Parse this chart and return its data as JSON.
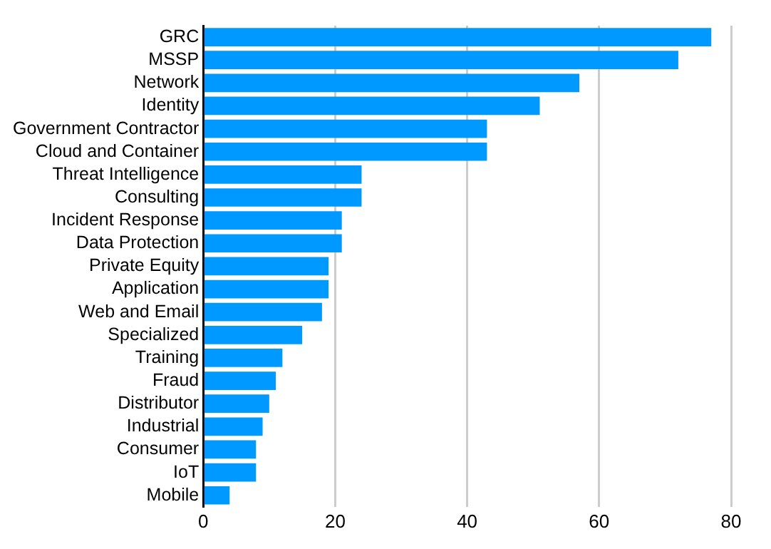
{
  "chart_data": {
    "type": "bar",
    "orientation": "horizontal",
    "categories": [
      "GRC",
      "MSSP",
      "Network",
      "Identity",
      "Government Contractor",
      "Cloud and Container",
      "Threat Intelligence",
      "Consulting",
      "Incident Response",
      "Data Protection",
      "Private Equity",
      "Application",
      "Web and Email",
      "Specialized",
      "Training",
      "Fraud",
      "Distributor",
      "Industrial",
      "Consumer",
      "IoT",
      "Mobile"
    ],
    "values": [
      77,
      72,
      57,
      51,
      43,
      43,
      24,
      24,
      21,
      21,
      19,
      19,
      18,
      15,
      12,
      11,
      10,
      9,
      8,
      8,
      4
    ],
    "color": "#0099ff",
    "xlim": [
      0,
      80
    ],
    "xticks": [
      0,
      20,
      40,
      60,
      80
    ],
    "grid": "x",
    "legend": false
  }
}
